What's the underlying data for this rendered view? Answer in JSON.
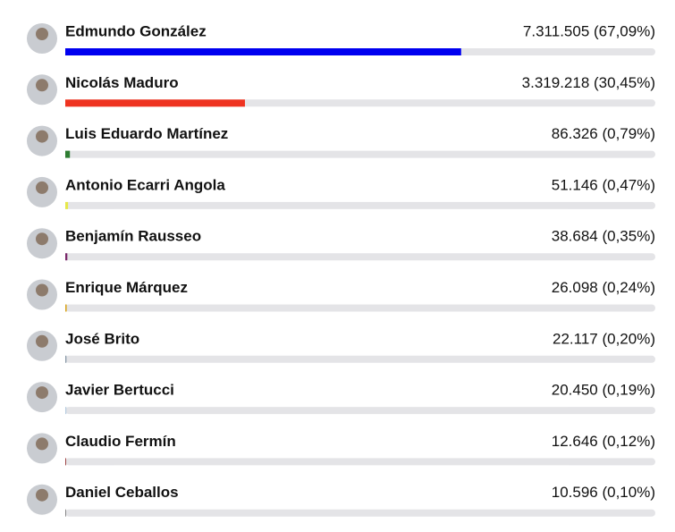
{
  "chart_data": {
    "type": "bar",
    "orientation": "horizontal",
    "categories": [
      "Edmundo González",
      "Nicolás Maduro",
      "Luis Eduardo Martínez",
      "Antonio Ecarri Angola",
      "Benjamín Rausseo",
      "Enrique Márquez",
      "José Brito",
      "Javier Bertucci",
      "Claudio Fermín",
      "Daniel Ceballos"
    ],
    "values": [
      67.09,
      30.45,
      0.79,
      0.47,
      0.35,
      0.24,
      0.2,
      0.19,
      0.12,
      0.1
    ],
    "value_labels": [
      "7.311.505 (67,09%)",
      "3.319.218 (30,45%)",
      "86.326 (0,79%)",
      "51.146 (0,47%)",
      "38.684 (0,35%)",
      "26.098 (0,24%)",
      "22.117 (0,20%)",
      "20.450 (0,19%)",
      "12.646 (0,12%)",
      "10.596 (0,10%)"
    ],
    "colors": [
      "#0000f0",
      "#ef3320",
      "#2e7d32",
      "#e6e84a",
      "#7b2a6b",
      "#d9a521",
      "#8a9aa8",
      "#b8cde0",
      "#8b1a1a",
      "#555555"
    ],
    "xlim": [
      0,
      100
    ]
  }
}
